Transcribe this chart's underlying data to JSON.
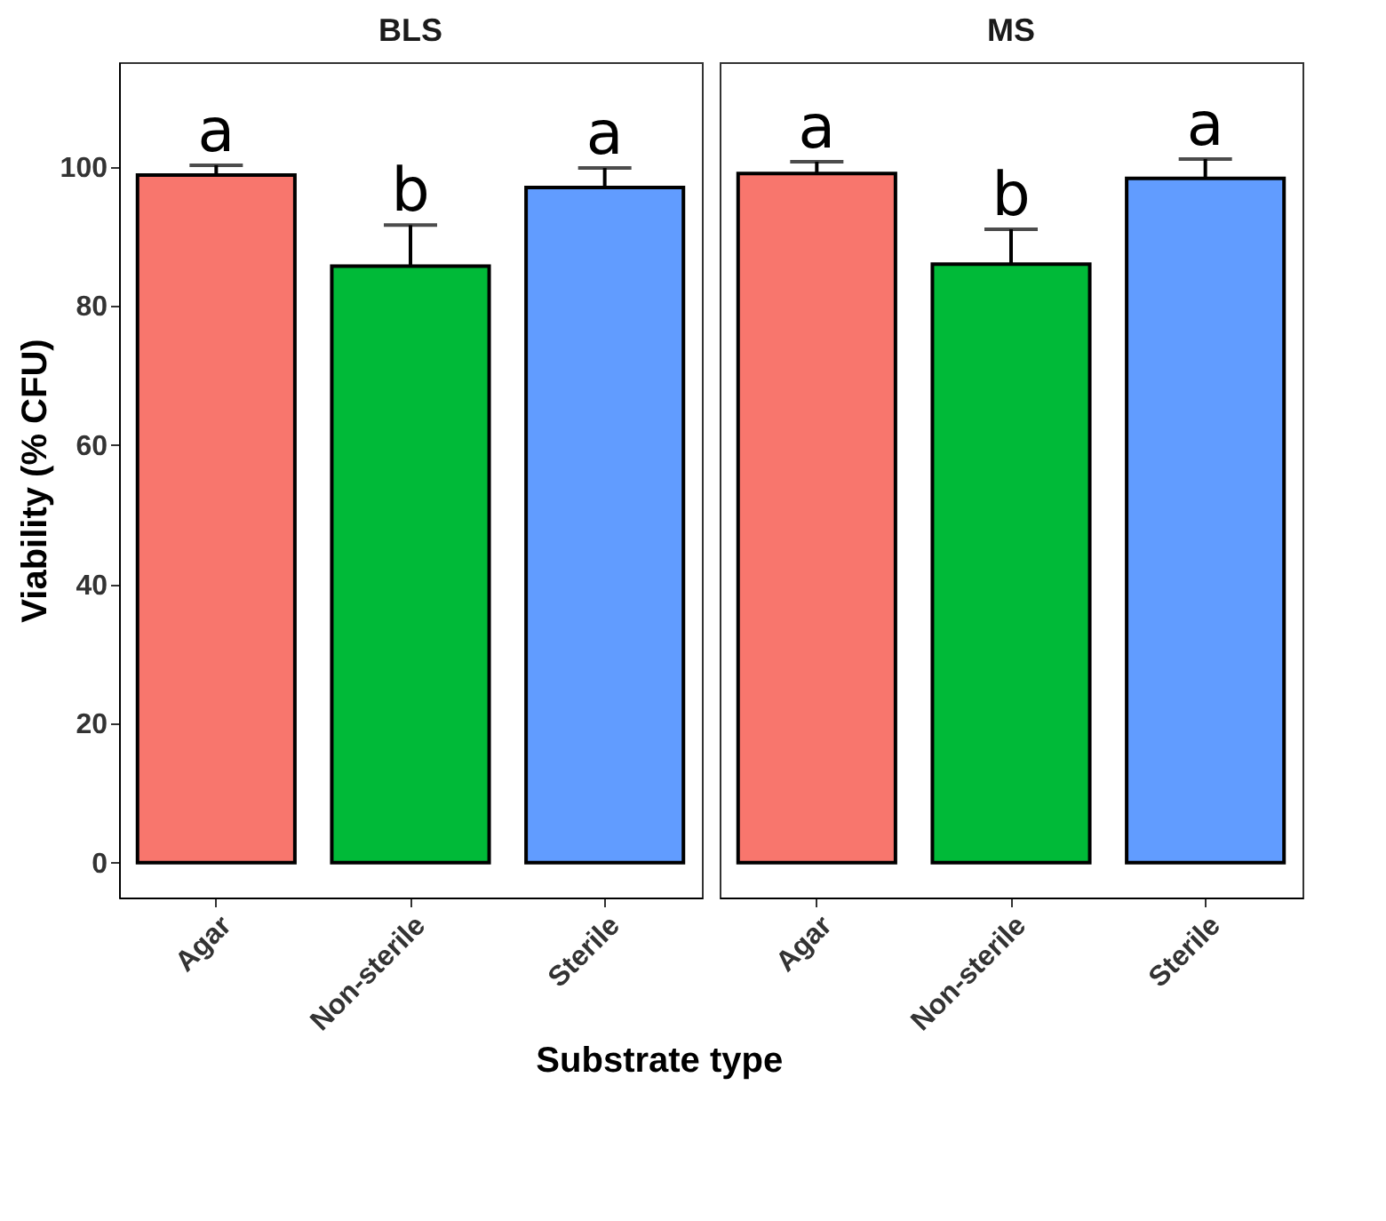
{
  "chart_data": [
    {
      "type": "bar",
      "title": "BLS",
      "ylabel": "Viability (% CFU)",
      "xlabel": "Substrate type",
      "categories": [
        "Agar",
        "Non-sterile",
        "Sterile"
      ],
      "values": [
        98.8,
        85.7,
        97.0
      ],
      "colors": [
        "#f8766d",
        "#00ba38",
        "#619cff"
      ],
      "errors": [
        [
          98.8,
          100.2
        ],
        [
          85.7,
          91.6
        ],
        [
          97.0,
          99.8
        ]
      ],
      "ylim": [
        -5,
        115
      ],
      "yticks": [
        0,
        20,
        40,
        60,
        80,
        100
      ],
      "annotations": [
        {
          "text": "a",
          "x": "Agar",
          "y": 100.2
        },
        {
          "text": "b",
          "x": "Non-sterile",
          "y": 91.6
        },
        {
          "text": "a",
          "x": "Sterile",
          "y": 99.8
        }
      ]
    },
    {
      "type": "bar",
      "title": "MS",
      "categories": [
        "Agar",
        "Non-sterile",
        "Sterile"
      ],
      "values": [
        99.0,
        86.0,
        98.3
      ],
      "colors": [
        "#f8766d",
        "#00ba38",
        "#619cff"
      ],
      "errors": [
        [
          99.0,
          100.7
        ],
        [
          86.0,
          91.0
        ],
        [
          98.3,
          101.1
        ]
      ],
      "ylim": [
        -5,
        115
      ],
      "yticks": [
        0,
        20,
        40,
        60,
        80,
        100
      ],
      "tick_labels": "x",
      "annotations": [
        {
          "text": "a",
          "x": "Agar",
          "y": 100.7
        },
        {
          "text": "b",
          "x": "Non-sterile",
          "y": 91.0
        },
        {
          "text": "a",
          "x": "Sterile",
          "y": 101.1
        }
      ]
    }
  ]
}
